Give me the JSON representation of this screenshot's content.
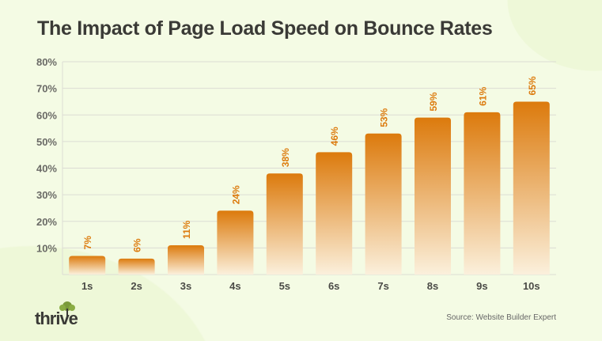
{
  "chart_data": {
    "type": "bar",
    "title": "The Impact of Page Load Speed on Bounce Rates",
    "categories": [
      "1s",
      "2s",
      "3s",
      "4s",
      "5s",
      "6s",
      "7s",
      "8s",
      "9s",
      "10s"
    ],
    "values": [
      7,
      6,
      11,
      24,
      38,
      46,
      53,
      59,
      61,
      65
    ],
    "data_labels": [
      "7%",
      "6%",
      "11%",
      "24%",
      "38%",
      "46%",
      "53%",
      "59%",
      "61%",
      "65%"
    ],
    "ylim": [
      0,
      80
    ],
    "yticks": [
      10,
      20,
      30,
      40,
      50,
      60,
      70,
      80
    ],
    "ytick_labels": [
      "10%",
      "20%",
      "30%",
      "40%",
      "50%",
      "60%",
      "70%",
      "80%"
    ],
    "grid": true,
    "colors": {
      "bar_top": "#dc7a0c",
      "bar_bottom": "#fbeed8",
      "label": "#dc7a0c",
      "grid": "#dcdcd4"
    }
  },
  "footer": {
    "source": "Source: Website Builder Expert",
    "logo": "thrive"
  }
}
